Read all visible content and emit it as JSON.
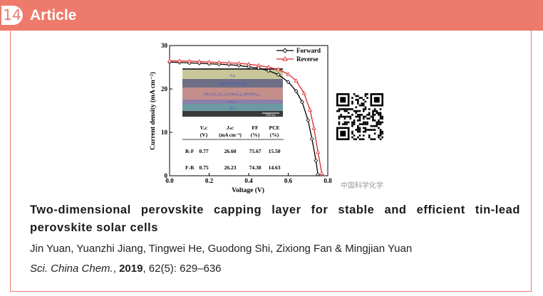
{
  "header": {
    "number": "14",
    "label": "Article"
  },
  "figure": {
    "chart_data": {
      "type": "line",
      "xlabel": "Voltage (V)",
      "ylabel": "Current density (mA cm⁻²)",
      "xlim": [
        0.0,
        0.8
      ],
      "ylim": [
        0,
        30
      ],
      "x_ticks": [
        "0.0",
        "0.2",
        "0.4",
        "0.6",
        "0.8"
      ],
      "y_ticks": [
        "0",
        "10",
        "20",
        "30"
      ],
      "legend_position": "top-right",
      "series": [
        {
          "name": "Forward",
          "color": "#000000",
          "marker": "diamond",
          "x": [
            0.0,
            0.05,
            0.1,
            0.15,
            0.2,
            0.25,
            0.3,
            0.35,
            0.4,
            0.45,
            0.5,
            0.55,
            0.6,
            0.64,
            0.67,
            0.7,
            0.72,
            0.74,
            0.75
          ],
          "y": [
            26.2,
            26.1,
            26.0,
            25.9,
            25.8,
            25.7,
            25.6,
            25.4,
            25.1,
            24.8,
            24.2,
            23.3,
            21.6,
            19.5,
            17.0,
            12.8,
            8.5,
            3.5,
            0.3
          ]
        },
        {
          "name": "Reverse",
          "color": "#d9262b",
          "marker": "triangle",
          "x": [
            0.0,
            0.05,
            0.1,
            0.15,
            0.2,
            0.25,
            0.3,
            0.35,
            0.4,
            0.45,
            0.5,
            0.55,
            0.6,
            0.64,
            0.68,
            0.71,
            0.73,
            0.75,
            0.77
          ],
          "y": [
            26.5,
            26.45,
            26.4,
            26.3,
            26.2,
            26.1,
            26.0,
            25.9,
            25.7,
            25.4,
            25.0,
            24.5,
            23.4,
            21.9,
            19.0,
            15.2,
            11.0,
            5.5,
            0.5
          ]
        }
      ]
    },
    "inset_layers": [
      "Au",
      "Spiro-OMeTAD",
      "PEA₂Pb₁₀Sn₀₅I₄/(FASnI₃)₀₅(MAPbI₃)₀₅",
      "TiO₂",
      "ITO"
    ],
    "scale_bar": "500 nm",
    "table": {
      "headers": [
        "",
        "Voc (V)",
        "Jsc (mA cm⁻²)",
        "FF (%)",
        "PCE (%)"
      ],
      "header_top": [
        "",
        "Vₒᴄ",
        "Jₛᴄ",
        "FF",
        "PCE"
      ],
      "header_bottom": [
        "",
        "(V)",
        "(mA cm⁻²)",
        "(%)",
        "(%)"
      ],
      "rows": [
        [
          "R-F",
          "0.77",
          "26.60",
          "75.67",
          "15.50"
        ],
        [
          "F-R",
          "0.75",
          "26.23",
          "74.38",
          "14.63"
        ]
      ]
    }
  },
  "watermark": "中国科学化学",
  "paper": {
    "title": "Two-dimensional perovskite capping layer for stable and efficient tin-lead perovskite solar cells",
    "authors": "Jin Yuan, Yuanzhi Jiang, Tingwei He, Guodong Shi, Zixiong Fan & Mingjian Yuan",
    "journal": "Sci. China Chem.",
    "year": "2019",
    "volume_pages": ", 62(5): 629–636"
  }
}
